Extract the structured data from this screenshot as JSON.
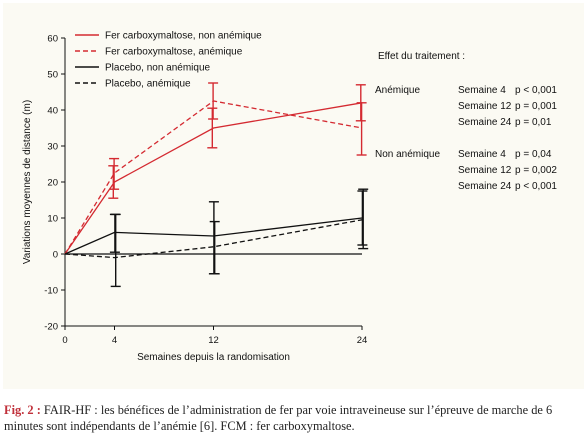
{
  "chart_data": {
    "type": "line",
    "xlabel": "Semaines depuis la randomisation",
    "ylabel": "Variations moyennes de distance (m)",
    "x": [
      0,
      4,
      12,
      24
    ],
    "xlim": [
      0,
      24
    ],
    "ylim": [
      -20,
      60
    ],
    "yticks": [
      -20,
      -10,
      0,
      10,
      20,
      30,
      40,
      50,
      60
    ],
    "xticks": [
      0,
      4,
      12,
      24
    ],
    "grid": false,
    "legend_position": "top-left",
    "series": [
      {
        "name": "Fer carboxymaltose, non anémique",
        "values": [
          0,
          20,
          35,
          42
        ],
        "err_low": [
          0,
          15.5,
          29.5,
          37
        ],
        "err_high": [
          0,
          24.5,
          40.5,
          47
        ],
        "color": "#d42a31",
        "dash": "solid"
      },
      {
        "name": "Fer carboxymaltose, anémique",
        "values": [
          0,
          22.5,
          42.5,
          35
        ],
        "err_low": [
          0,
          18,
          37.5,
          27.5
        ],
        "err_high": [
          0,
          26.5,
          47.5,
          42
        ],
        "color": "#d42a31",
        "dash": "dashed"
      },
      {
        "name": "Placebo, non anémique",
        "values": [
          0,
          6,
          5,
          10
        ],
        "err_low": [
          0,
          0.5,
          -5.5,
          2.5
        ],
        "err_high": [
          0,
          11,
          14.5,
          17.5
        ],
        "color": "#111111",
        "dash": "solid"
      },
      {
        "name": "Placebo, anémique",
        "values": [
          0,
          -1,
          2,
          9.5
        ],
        "err_low": [
          0,
          -9,
          -5.5,
          1.5
        ],
        "err_high": [
          0,
          11,
          9,
          18
        ],
        "color": "#111111",
        "dash": "dashed"
      }
    ]
  },
  "effect_title": "Effet du traitement :",
  "effects": [
    {
      "group": "Anémique",
      "rows": [
        {
          "week": "Semaine 4",
          "p": "p < 0,001"
        },
        {
          "week": "Semaine 12",
          "p": "p = 0,001"
        },
        {
          "week": "Semaine 24",
          "p": "p = 0,01"
        }
      ]
    },
    {
      "group": "Non anémique",
      "rows": [
        {
          "week": "Semaine 4",
          "p": "p = 0,04"
        },
        {
          "week": "Semaine 12",
          "p": "p = 0,002"
        },
        {
          "week": "Semaine 24",
          "p": "p < 0,001"
        }
      ]
    }
  ],
  "caption": {
    "label": "Fig. 2 :",
    "text": " FAIR-HF : les bénéfices de l’administration de fer par voie intraveineuse sur l’épreuve de marche de 6 minutes sont indépendants de l’anémie [6]. FCM : fer carboxymaltose."
  }
}
